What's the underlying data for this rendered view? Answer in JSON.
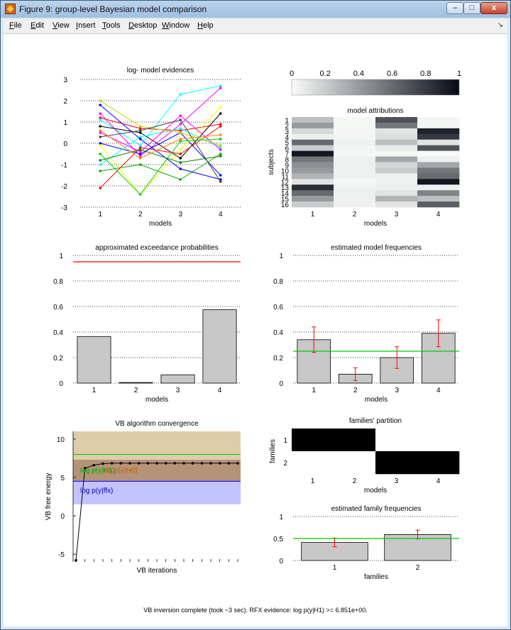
{
  "window": {
    "title": "Figure 9: group-level Bayesian model comparison",
    "buttons": {
      "minimize": "–",
      "maximize": "□",
      "close": "x"
    }
  },
  "menubar": {
    "items": [
      "File",
      "Edit",
      "View",
      "Insert",
      "Tools",
      "Desktop",
      "Window",
      "Help"
    ],
    "dock_arrow": "↘"
  },
  "status": "VB inversion complete (took ~3 sec). RFX evidence: log p(y|H1) >= 6.851e+00.",
  "colors": {
    "bar_fill": "#c8c8c8",
    "red_line": "#ff0000",
    "green_line": "#00cc00",
    "rfx_band": "#a88060",
    "ffx_band": "#b8b8ff",
    "top_band": "#d8c49a"
  },
  "chart_data": [
    {
      "id": "log-evidences",
      "type": "line",
      "title": "log- model evidences",
      "xlabel": "models",
      "ylabel": "",
      "x": [
        1,
        2,
        3,
        4
      ],
      "xlim": [
        0.5,
        4.5
      ],
      "ylim": [
        -3,
        3
      ],
      "yticks": [
        -3,
        -2,
        -1,
        0,
        1,
        2,
        3
      ],
      "grid": "horizontal dotted",
      "series": [
        {
          "color": "#ff0000",
          "values": [
            1.2,
            0.7,
            0.6,
            0.9
          ]
        },
        {
          "color": "#00ffff",
          "values": [
            1.1,
            -0.1,
            2.3,
            2.7
          ]
        },
        {
          "color": "#ff00ff",
          "values": [
            1.4,
            -0.6,
            0.9,
            2.6
          ]
        },
        {
          "color": "#0000ff",
          "values": [
            0.0,
            -0.5,
            0.5,
            -1.5
          ]
        },
        {
          "color": "#ffff00",
          "values": [
            -0.1,
            -2.4,
            -0.3,
            1.7
          ]
        },
        {
          "color": "#000000",
          "values": [
            0.8,
            0.5,
            -0.7,
            1.4
          ]
        },
        {
          "color": "#00aa00",
          "values": [
            -1.3,
            -1.0,
            -1.7,
            -0.5
          ]
        },
        {
          "color": "#ff0000",
          "values": [
            -2.1,
            -0.2,
            -0.5,
            0.8
          ]
        },
        {
          "color": "#00cc00",
          "values": [
            -0.5,
            -2.4,
            0.1,
            0.2
          ]
        },
        {
          "color": "#00ffff",
          "values": [
            -1.0,
            0.3,
            0.7,
            -0.2
          ]
        },
        {
          "color": "#ff00ff",
          "values": [
            0.5,
            -0.4,
            1.3,
            -0.3
          ]
        },
        {
          "color": "#0000ff",
          "values": [
            1.8,
            0.2,
            -1.2,
            -1.7
          ]
        },
        {
          "color": "#cccc00",
          "values": [
            2.0,
            0.8,
            0.5,
            -0.1
          ]
        },
        {
          "color": "#444444",
          "values": [
            0.3,
            0.6,
            1.1,
            -1.8
          ]
        },
        {
          "color": "#008800",
          "values": [
            -0.8,
            -0.3,
            -0.9,
            -0.6
          ]
        },
        {
          "color": "#ff8800",
          "values": [
            0.6,
            -0.7,
            0.2,
            0.4
          ]
        }
      ]
    },
    {
      "id": "colorbar",
      "type": "heatmap",
      "ticks": [
        "0",
        "0.2",
        "0.4",
        "0.6",
        "0.8",
        "1"
      ],
      "range": [
        0,
        1
      ]
    },
    {
      "id": "model-attributions",
      "type": "heatmap",
      "title": "model attributions",
      "xlabel": "models",
      "ylabel": "subjects",
      "xticks": [
        "1",
        "2",
        "3",
        "4"
      ],
      "yticks": [
        "1",
        "2",
        "3",
        "4",
        "5",
        "6",
        "7",
        "8",
        "9",
        "10",
        "11",
        "12",
        "13",
        "14",
        "15",
        "16"
      ],
      "values": [
        [
          0.25,
          0.02,
          0.7,
          0.03
        ],
        [
          0.4,
          0.02,
          0.55,
          0.03
        ],
        [
          0.15,
          0.02,
          0.1,
          0.9
        ],
        [
          0.05,
          0.03,
          0.12,
          0.8
        ],
        [
          0.6,
          0.05,
          0.25,
          0.1
        ],
        [
          0.2,
          0.03,
          0.07,
          0.7
        ],
        [
          0.95,
          0.02,
          0.02,
          0.01
        ],
        [
          0.55,
          0.05,
          0.35,
          0.05
        ],
        [
          0.45,
          0.05,
          0.15,
          0.35
        ],
        [
          0.4,
          0.05,
          0.2,
          0.55
        ],
        [
          0.3,
          0.05,
          0.05,
          0.6
        ],
        [
          0.1,
          0.02,
          0.05,
          0.95
        ],
        [
          0.85,
          0.05,
          0.05,
          0.05
        ],
        [
          0.6,
          0.05,
          0.1,
          0.5
        ],
        [
          0.4,
          0.05,
          0.3,
          0.25
        ],
        [
          0.2,
          0.05,
          0.1,
          0.65
        ]
      ]
    },
    {
      "id": "exceedance",
      "type": "bar",
      "title": "approximated exceedance probabilities",
      "xlabel": "models",
      "categories": [
        "1",
        "2",
        "3",
        "4"
      ],
      "values": [
        0.365,
        0.005,
        0.065,
        0.575
      ],
      "ylim": [
        0,
        1
      ],
      "yticks": [
        "0",
        "0.2",
        "0.4",
        "0.6",
        "0.8",
        "1"
      ],
      "reference_line": 0.95,
      "grid": "horizontal dotted"
    },
    {
      "id": "model-frequencies",
      "type": "bar",
      "title": "estimated model frequencies",
      "xlabel": "models",
      "categories": [
        "1",
        "2",
        "3",
        "4"
      ],
      "values": [
        0.34,
        0.07,
        0.2,
        0.39
      ],
      "errors": [
        0.1,
        0.05,
        0.085,
        0.105
      ],
      "ylim": [
        0,
        1
      ],
      "yticks": [
        "0",
        "0.2",
        "0.4",
        "0.6",
        "0.8",
        "1"
      ],
      "reference_line": 0.25,
      "grid": "horizontal dotted"
    },
    {
      "id": "vb-convergence",
      "type": "line",
      "title": "VB algorithm convergence",
      "xlabel": "VB iterations",
      "ylabel": "VB free energy",
      "values": [
        -5.8,
        6.2,
        6.6,
        6.8,
        6.85,
        6.85,
        6.85,
        6.85,
        6.85,
        6.85,
        6.85,
        6.85,
        6.85,
        6.85,
        6.85,
        6.85,
        6.85,
        6.85,
        6.85
      ],
      "ylim": [
        -6,
        11
      ],
      "yticks": [
        "-5",
        "0",
        "5",
        "10"
      ],
      "bands": [
        {
          "from": 7.3,
          "to": 11,
          "color": "#d8c49a"
        },
        {
          "from": 4.5,
          "to": 7.3,
          "color": "#a88060"
        },
        {
          "from": 1.5,
          "to": 4.5,
          "color": "#b8b8ff"
        }
      ],
      "lines": [
        {
          "value": 8.0,
          "color": "#00cc00"
        },
        {
          "value": 4.5,
          "color": "#0000ff"
        }
      ],
      "annotations": [
        {
          "text": "log p(y|H1)",
          "color": "#00aa00",
          "y": 6.0
        },
        {
          "text": "log p(y|H0)",
          "color": "#c06000",
          "y": 6.0
        },
        {
          "text": "log p(y|ffx)",
          "color": "#0000cc",
          "y": 3.4
        }
      ]
    },
    {
      "id": "families-partition",
      "type": "heatmap",
      "title": "families' partition",
      "xlabel": "models",
      "ylabel": "families",
      "xticks": [
        "1",
        "2",
        "3",
        "4"
      ],
      "yticks": [
        "1",
        "2"
      ],
      "values": [
        [
          1,
          1,
          0,
          0
        ],
        [
          0,
          0,
          1,
          1
        ]
      ]
    },
    {
      "id": "family-frequencies",
      "type": "bar",
      "title": "estimated family frequencies",
      "xlabel": "families",
      "categories": [
        "1",
        "2"
      ],
      "values": [
        0.41,
        0.59
      ],
      "errors": [
        0.1,
        0.1
      ],
      "ylim": [
        0,
        1
      ],
      "yticks": [
        "0",
        "0.5",
        "1"
      ],
      "reference_line": 0.5,
      "grid": "horizontal dotted"
    }
  ]
}
